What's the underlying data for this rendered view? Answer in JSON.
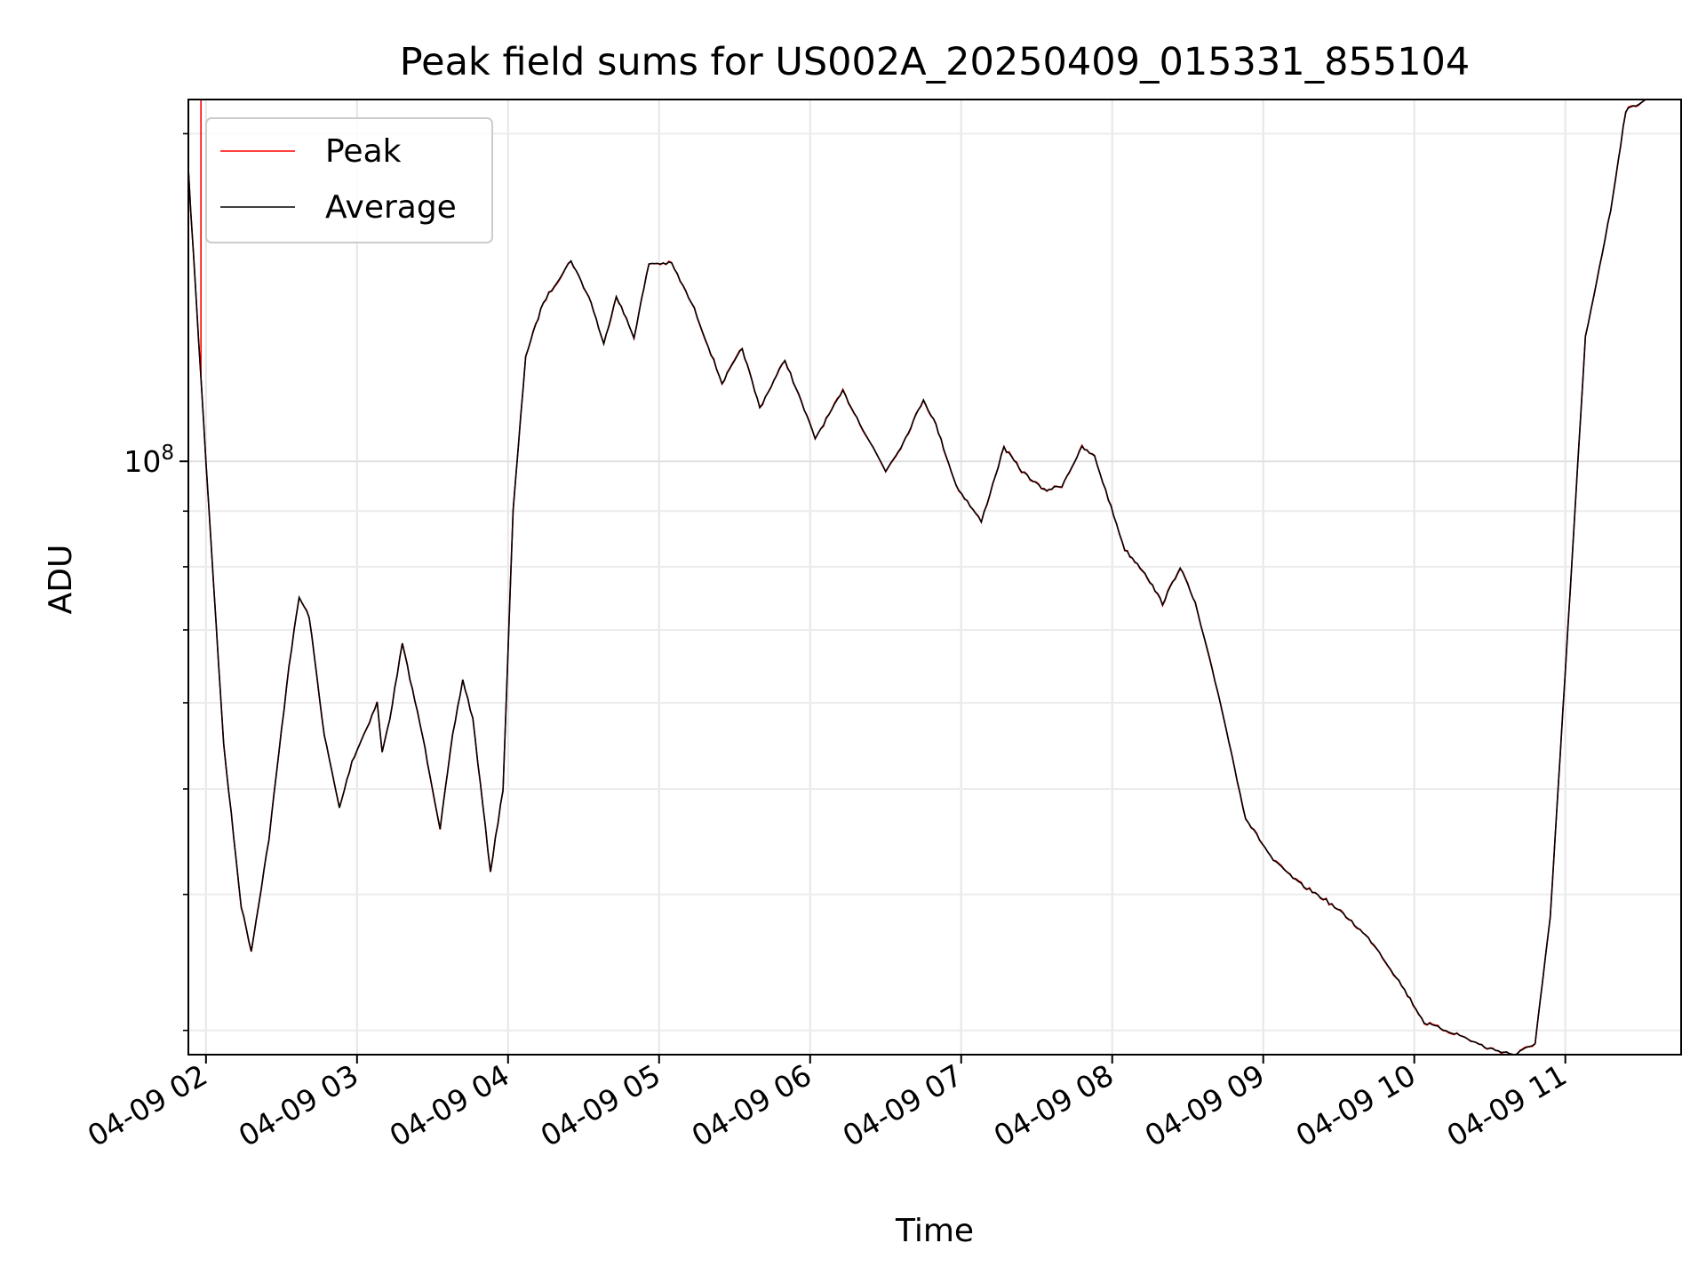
{
  "chart_data": {
    "type": "line",
    "title": "Peak field sums for US002A_20250409_015331_855104",
    "xlabel": "Time",
    "ylabel": "ADU",
    "y_scale": "log",
    "grid": true,
    "legend_placement": "upper-left",
    "xlim": [
      "2025-04-09 01:53",
      "2025-04-09 11:46"
    ],
    "ylim": [
      28500000,
      215000000
    ],
    "x_ticks": [
      "2025-04-09 02:00",
      "2025-04-09 03:00",
      "2025-04-09 04:00",
      "2025-04-09 05:00",
      "2025-04-09 06:00",
      "2025-04-09 07:00",
      "2025-04-09 08:00",
      "2025-04-09 09:00",
      "2025-04-09 10:00",
      "2025-04-09 11:00"
    ],
    "x_tick_labels": [
      "04-09 02",
      "04-09 03",
      "04-09 04",
      "04-09 05",
      "04-09 06",
      "04-09 07",
      "04-09 08",
      "04-09 09",
      "04-09 10",
      "04-09 11"
    ],
    "y_major_ticks": [
      100000000
    ],
    "y_major_tick_labels": [
      {
        "base": "10",
        "exponent": "8"
      }
    ],
    "y_minor_ticks": [
      30000000,
      40000000,
      50000000,
      60000000,
      70000000,
      80000000,
      90000000,
      200000000
    ],
    "legend": [
      {
        "label": "Peak",
        "color": "#ff0000"
      },
      {
        "label": "Average",
        "color": "#000000"
      }
    ],
    "series": [
      {
        "name": "Average",
        "color": "#000000",
        "points": [
          [
            "2025-04-09 01:53",
            185000000
          ],
          [
            "2025-04-09 02:00",
            100000000
          ],
          [
            "2025-04-09 02:07",
            55000000
          ],
          [
            "2025-04-09 02:14",
            39000000
          ],
          [
            "2025-04-09 02:18",
            35500000
          ],
          [
            "2025-04-09 02:25",
            45000000
          ],
          [
            "2025-04-09 02:33",
            65000000
          ],
          [
            "2025-04-09 02:37",
            75000000
          ],
          [
            "2025-04-09 02:41",
            72000000
          ],
          [
            "2025-04-09 02:47",
            56000000
          ],
          [
            "2025-04-09 02:53",
            48000000
          ],
          [
            "2025-04-09 02:58",
            53000000
          ],
          [
            "2025-04-09 03:04",
            57000000
          ],
          [
            "2025-04-09 03:08",
            60000000
          ],
          [
            "2025-04-09 03:10",
            54000000
          ],
          [
            "2025-04-09 03:13",
            58000000
          ],
          [
            "2025-04-09 03:18",
            68000000
          ],
          [
            "2025-04-09 03:26",
            56000000
          ],
          [
            "2025-04-09 03:33",
            46000000
          ],
          [
            "2025-04-09 03:38",
            56000000
          ],
          [
            "2025-04-09 03:42",
            63000000
          ],
          [
            "2025-04-09 03:46",
            58000000
          ],
          [
            "2025-04-09 03:53",
            42000000
          ],
          [
            "2025-04-09 03:58",
            50000000
          ],
          [
            "2025-04-09 04:02",
            90000000
          ],
          [
            "2025-04-09 04:07",
            125000000
          ],
          [
            "2025-04-09 04:14",
            140000000
          ],
          [
            "2025-04-09 04:25",
            153000000
          ],
          [
            "2025-04-09 04:33",
            140000000
          ],
          [
            "2025-04-09 04:38",
            128000000
          ],
          [
            "2025-04-09 04:43",
            142000000
          ],
          [
            "2025-04-09 04:50",
            130000000
          ],
          [
            "2025-04-09 04:56",
            152000000
          ],
          [
            "2025-04-09 05:05",
            152000000
          ],
          [
            "2025-04-09 05:14",
            138000000
          ],
          [
            "2025-04-09 05:25",
            118000000
          ],
          [
            "2025-04-09 05:33",
            127000000
          ],
          [
            "2025-04-09 05:40",
            112000000
          ],
          [
            "2025-04-09 05:50",
            124000000
          ],
          [
            "2025-04-09 06:02",
            105000000
          ],
          [
            "2025-04-09 06:13",
            116000000
          ],
          [
            "2025-04-09 06:22",
            106000000
          ],
          [
            "2025-04-09 06:30",
            98000000
          ],
          [
            "2025-04-09 06:37",
            104000000
          ],
          [
            "2025-04-09 06:45",
            114000000
          ],
          [
            "2025-04-09 06:50",
            108000000
          ],
          [
            "2025-04-09 06:58",
            95000000
          ],
          [
            "2025-04-09 07:08",
            88000000
          ],
          [
            "2025-04-09 07:17",
            103000000
          ],
          [
            "2025-04-09 07:24",
            98000000
          ],
          [
            "2025-04-09 07:33",
            94000000
          ],
          [
            "2025-04-09 07:40",
            95000000
          ],
          [
            "2025-04-09 07:48",
            103000000
          ],
          [
            "2025-04-09 07:53",
            101000000
          ],
          [
            "2025-04-09 08:05",
            83000000
          ],
          [
            "2025-04-09 08:13",
            79000000
          ],
          [
            "2025-04-09 08:20",
            74000000
          ],
          [
            "2025-04-09 08:27",
            80000000
          ],
          [
            "2025-04-09 08:33",
            74000000
          ],
          [
            "2025-04-09 08:43",
            60000000
          ],
          [
            "2025-04-09 08:53",
            47000000
          ],
          [
            "2025-04-09 09:04",
            43000000
          ],
          [
            "2025-04-09 09:14",
            41000000
          ],
          [
            "2025-04-09 09:25",
            39500000
          ],
          [
            "2025-04-09 09:34",
            38000000
          ],
          [
            "2025-04-09 09:44",
            36000000
          ],
          [
            "2025-04-09 09:55",
            33000000
          ],
          [
            "2025-04-09 10:04",
            30500000
          ],
          [
            "2025-04-09 10:18",
            29700000
          ],
          [
            "2025-04-09 10:29",
            28900000
          ],
          [
            "2025-04-09 10:40",
            28500000
          ],
          [
            "2025-04-09 10:48",
            29200000
          ],
          [
            "2025-04-09 10:54",
            38000000
          ],
          [
            "2025-04-09 11:01",
            70000000
          ],
          [
            "2025-04-09 11:08",
            130000000
          ],
          [
            "2025-04-09 11:18",
            170000000
          ],
          [
            "2025-04-09 11:24",
            210000000
          ],
          [
            "2025-04-09 11:32",
            215000000
          ]
        ]
      }
    ]
  }
}
